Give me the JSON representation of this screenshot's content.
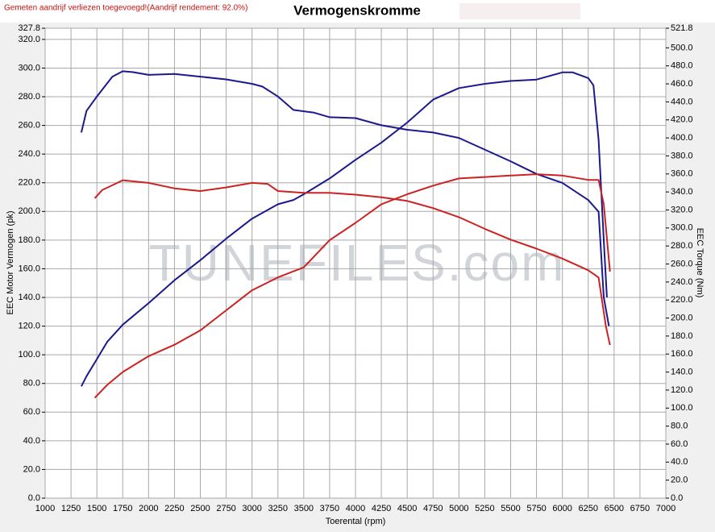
{
  "chart_data": {
    "type": "line",
    "title": "Vermogenskromme",
    "note": "Gemeten aandrijf verliezen toegevoegd!(Aandrijf rendement: 92.0%)",
    "watermark": "TUNEFILES.com",
    "x_label": "Toerental (rpm)",
    "y_label": "EEC Motor Vermogen (pk)",
    "y2_label": "EEC Torque (Nm)",
    "grid": true,
    "xlim": [
      1000,
      7000
    ],
    "xticks": [
      1000,
      1250,
      1500,
      1750,
      2000,
      2250,
      2500,
      2750,
      3000,
      3250,
      3500,
      3750,
      4000,
      4250,
      4500,
      4750,
      5000,
      5250,
      5500,
      5750,
      6000,
      6250,
      6500,
      6750,
      7000
    ],
    "ylim": [
      0,
      327.8
    ],
    "yticks": [
      {
        "value": 0,
        "label": "0.0"
      },
      {
        "value": 20,
        "label": "20.0"
      },
      {
        "value": 40,
        "label": "40.0"
      },
      {
        "value": 60,
        "label": "60.0"
      },
      {
        "value": 80,
        "label": "80.0"
      },
      {
        "value": 100,
        "label": "100.0"
      },
      {
        "value": 120,
        "label": "120.0"
      },
      {
        "value": 140,
        "label": "140.0"
      },
      {
        "value": 160,
        "label": "160.0"
      },
      {
        "value": 180,
        "label": "180.0"
      },
      {
        "value": 200,
        "label": "200.0"
      },
      {
        "value": 220,
        "label": "220.0"
      },
      {
        "value": 240,
        "label": "240.0"
      },
      {
        "value": 260,
        "label": "260.0"
      },
      {
        "value": 280,
        "label": "280.0"
      },
      {
        "value": 300,
        "label": "300.0"
      },
      {
        "value": 320,
        "label": "320.0"
      },
      327.8
    ],
    "y2lim": [
      0,
      521.8
    ],
    "y2ticks": [
      {
        "value": 0,
        "label": "0.0"
      },
      {
        "value": 20,
        "label": "20.0"
      },
      {
        "value": 40,
        "label": "40.0"
      },
      {
        "value": 60,
        "label": "60.0"
      },
      {
        "value": 80,
        "label": "80.0"
      },
      {
        "value": 100,
        "label": "100.0"
      },
      {
        "value": 120,
        "label": "120.0"
      },
      {
        "value": 140,
        "label": "140.0"
      },
      {
        "value": 160,
        "label": "160.0"
      },
      {
        "value": 180,
        "label": "180.0"
      },
      {
        "value": 200,
        "label": "200.0"
      },
      {
        "value": 220,
        "label": "220.0"
      },
      {
        "value": 240,
        "label": "240.0"
      },
      {
        "value": 260,
        "label": "260.0"
      },
      {
        "value": 280,
        "label": "280.0"
      },
      {
        "value": 300,
        "label": "300.0"
      },
      {
        "value": 320,
        "label": "320.0"
      },
      {
        "value": 340,
        "label": "340.0"
      },
      {
        "value": 360,
        "label": "360.0"
      },
      {
        "value": 380,
        "label": "380.0"
      },
      {
        "value": 400,
        "label": "400.0"
      },
      {
        "value": 420,
        "label": "420.0"
      },
      {
        "value": 440,
        "label": "440.0"
      },
      {
        "value": 460,
        "label": "460.0"
      },
      {
        "value": 480,
        "label": "480.0"
      },
      {
        "value": 500,
        "label": "500.0"
      },
      521.8
    ],
    "series": [
      {
        "color": "#1a1a8c",
        "x": [
          1350,
          1400,
          1500,
          1600,
          1750,
          2000,
          2250,
          2500,
          2750,
          3000,
          3250,
          3400,
          3500,
          3750,
          4000,
          4250,
          4500,
          4750,
          5000,
          5250,
          5500,
          5750,
          6000,
          6100,
          6250,
          6300,
          6350,
          6400,
          6430
        ],
        "values": [
          78,
          85,
          97,
          109,
          121,
          136,
          152,
          166,
          181,
          195,
          205,
          208,
          212,
          223,
          236,
          248,
          262,
          278,
          286,
          289,
          291,
          292,
          297,
          297,
          293,
          288,
          250,
          180,
          140
        ]
      },
      {
        "color": "#1a1a8c",
        "axis": "y2",
        "x": [
          1350,
          1400,
          1500,
          1650,
          1750,
          1850,
          2000,
          2250,
          2500,
          2750,
          3000,
          3100,
          3250,
          3400,
          3600,
          3750,
          4000,
          4250,
          4500,
          4750,
          5000,
          5250,
          5500,
          5750,
          6000,
          6250,
          6350,
          6400,
          6450
        ],
        "values": [
          406,
          430,
          446,
          468,
          474,
          473,
          470,
          471,
          468,
          465,
          460,
          457,
          446,
          431,
          428,
          423,
          422,
          414,
          409,
          406,
          400,
          387,
          374,
          360,
          350,
          331,
          318,
          223,
          191
        ]
      },
      {
        "color": "#cc2222",
        "x": [
          1480,
          1600,
          1750,
          2000,
          2250,
          2500,
          2750,
          3000,
          3250,
          3500,
          3750,
          4000,
          4250,
          4500,
          4750,
          5000,
          5250,
          5500,
          5750,
          6000,
          6250,
          6350,
          6400,
          6460
        ],
        "values": [
          70,
          79,
          88,
          99,
          107,
          117,
          131,
          145,
          154,
          161,
          180,
          192,
          205,
          212,
          218,
          223,
          224,
          225,
          226,
          225,
          222,
          222,
          205,
          158
        ]
      },
      {
        "color": "#cc2222",
        "axis": "y2",
        "x": [
          1480,
          1550,
          1750,
          2000,
          2250,
          2500,
          2750,
          3000,
          3150,
          3250,
          3500,
          3750,
          4000,
          4250,
          4500,
          4750,
          5000,
          5250,
          5500,
          5750,
          6000,
          6250,
          6350,
          6420,
          6460
        ],
        "values": [
          333,
          342,
          353,
          350,
          344,
          341,
          345,
          350,
          349,
          341,
          339,
          339,
          337,
          334,
          330,
          322,
          312,
          299,
          287,
          277,
          266,
          253,
          245,
          191,
          170
        ]
      }
    ]
  }
}
